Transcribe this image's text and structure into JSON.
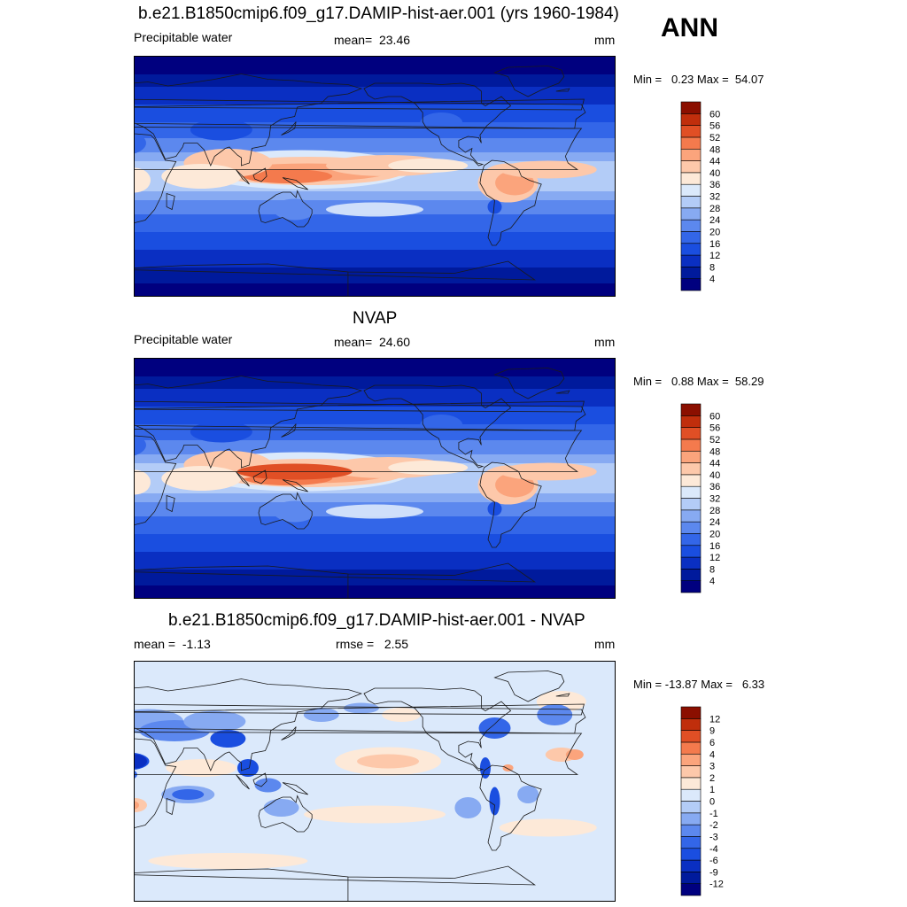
{
  "header": {
    "title": "b.e21.B1850cmip6.f09_g17.DAMIP-hist-aer.001 (yrs 1960-1984)",
    "season": "ANN"
  },
  "panels": [
    {
      "title": "",
      "left": "Precipitable water",
      "center": "mean=  23.46",
      "right": "mm",
      "minmax": "Min =   0.23 Max =  54.07"
    },
    {
      "title": "NVAP",
      "left": "Precipitable water",
      "center": "mean=  24.60",
      "right": "mm",
      "minmax": "Min =   0.88 Max =  58.29"
    },
    {
      "title": "b.e21.B1850cmip6.f09_g17.DAMIP-hist-aer.001 - NVAP",
      "left": "mean =  -1.13",
      "center": "rmse =   2.55",
      "right": "mm",
      "minmax": "Min = -13.87 Max =   6.33"
    }
  ],
  "chart_data": [
    {
      "type": "heatmap",
      "title": "b.e21.B1850cmip6.f09_g17.DAMIP-hist-aer.001 (yrs 1960-1984)",
      "variable": "Precipitable water",
      "units": "mm",
      "mean": 23.46,
      "min": 0.23,
      "max": 54.07,
      "colorbar_levels": [
        "4",
        "8",
        "12",
        "16",
        "20",
        "24",
        "28",
        "32",
        "36",
        "40",
        "44",
        "48",
        "52",
        "56",
        "60"
      ],
      "colors": [
        "#00007f",
        "#001a9c",
        "#0a2fc2",
        "#1a4ee0",
        "#3366e8",
        "#5c88ee",
        "#87aaf2",
        "#b3ccf7",
        "#dbe9fb",
        "#fde9d8",
        "#fdc8aa",
        "#fba47c",
        "#f47a4d",
        "#e04f25",
        "#c02e0c",
        "#8b0f00"
      ]
    },
    {
      "type": "heatmap",
      "title": "NVAP",
      "variable": "Precipitable water",
      "units": "mm",
      "mean": 24.6,
      "min": 0.88,
      "max": 58.29,
      "colorbar_levels": [
        "4",
        "8",
        "12",
        "16",
        "20",
        "24",
        "28",
        "32",
        "36",
        "40",
        "44",
        "48",
        "52",
        "56",
        "60"
      ],
      "colors": [
        "#00007f",
        "#001a9c",
        "#0a2fc2",
        "#1a4ee0",
        "#3366e8",
        "#5c88ee",
        "#87aaf2",
        "#b3ccf7",
        "#dbe9fb",
        "#fde9d8",
        "#fdc8aa",
        "#fba47c",
        "#f47a4d",
        "#e04f25",
        "#c02e0c",
        "#8b0f00"
      ]
    },
    {
      "type": "heatmap",
      "title": "b.e21.B1850cmip6.f09_g17.DAMIP-hist-aer.001 - NVAP",
      "units": "mm",
      "mean": -1.13,
      "rmse": 2.55,
      "min": -13.87,
      "max": 6.33,
      "colorbar_levels": [
        "-12",
        "-9",
        "-6",
        "-4",
        "-3",
        "-2",
        "-1",
        "0",
        "1",
        "2",
        "3",
        "4",
        "6",
        "9",
        "12"
      ],
      "colors": [
        "#00007f",
        "#001a9c",
        "#0a2fc2",
        "#1a4ee0",
        "#3366e8",
        "#5c88ee",
        "#87aaf2",
        "#b3ccf7",
        "#dbe9fb",
        "#fde9d8",
        "#fdc8aa",
        "#fba47c",
        "#f47a4d",
        "#e04f25",
        "#c02e0c",
        "#8b0f00"
      ]
    }
  ]
}
